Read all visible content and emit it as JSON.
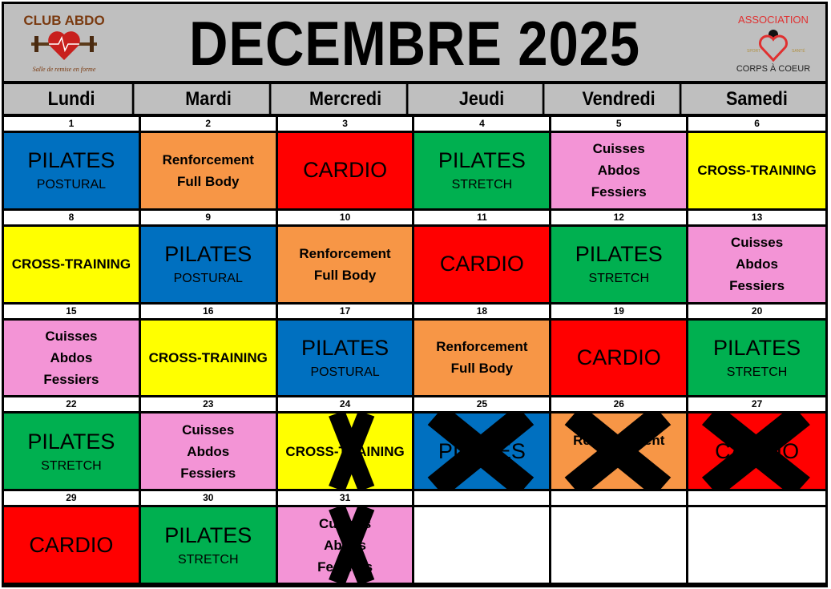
{
  "title": "DECEMBRE 2025",
  "logos": {
    "left": {
      "name": "CLUB ABDO",
      "tagline": "Salle de remise en forme"
    },
    "right": {
      "name": "ASSOCIATION",
      "sub": "CORPS À COEUR",
      "left_tag": "SPORT",
      "right_tag": "SANTÉ"
    }
  },
  "weekdays": [
    "Lundi",
    "Mardi",
    "Mercredi",
    "Jeudi",
    "Vendredi",
    "Samedi"
  ],
  "colors": {
    "pilates_postural": "#0070c0",
    "pilates_stretch": "#00b050",
    "renforcement": "#f79646",
    "cardio": "#ff0000",
    "cuisses": "#f394d6",
    "cross": "#ffff00",
    "empty": "#ffffff"
  },
  "cells": [
    {
      "day": "1",
      "lines": [
        "PILATES",
        "POSTURAL"
      ],
      "kind": "pilates",
      "color": "#0070c0"
    },
    {
      "day": "2",
      "lines": [
        "Renforcement",
        "Full Body"
      ],
      "kind": "bold",
      "color": "#f79646"
    },
    {
      "day": "3",
      "lines": [
        "CARDIO"
      ],
      "kind": "big",
      "color": "#ff0000"
    },
    {
      "day": "4",
      "lines": [
        "PILATES",
        "STRETCH"
      ],
      "kind": "pilates",
      "color": "#00b050"
    },
    {
      "day": "5",
      "lines": [
        "Cuisses",
        "Abdos",
        "Fessiers"
      ],
      "kind": "bold",
      "color": "#f394d6"
    },
    {
      "day": "6",
      "lines": [
        "CROSS-TRAINING"
      ],
      "kind": "bold",
      "color": "#ffff00"
    },
    {
      "day": "8",
      "lines": [
        "CROSS-TRAINING"
      ],
      "kind": "bold",
      "color": "#ffff00"
    },
    {
      "day": "9",
      "lines": [
        "PILATES",
        "POSTURAL"
      ],
      "kind": "pilates",
      "color": "#0070c0"
    },
    {
      "day": "10",
      "lines": [
        "Renforcement",
        "Full Body"
      ],
      "kind": "bold",
      "color": "#f79646"
    },
    {
      "day": "11",
      "lines": [
        "CARDIO"
      ],
      "kind": "big",
      "color": "#ff0000"
    },
    {
      "day": "12",
      "lines": [
        "PILATES",
        "STRETCH"
      ],
      "kind": "pilates",
      "color": "#00b050"
    },
    {
      "day": "13",
      "lines": [
        "Cuisses",
        "Abdos",
        "Fessiers"
      ],
      "kind": "bold",
      "color": "#f394d6"
    },
    {
      "day": "15",
      "lines": [
        "Cuisses",
        "Abdos",
        "Fessiers"
      ],
      "kind": "bold",
      "color": "#f394d6"
    },
    {
      "day": "16",
      "lines": [
        "CROSS-TRAINING"
      ],
      "kind": "bold",
      "color": "#ffff00"
    },
    {
      "day": "17",
      "lines": [
        "PILATES",
        "POSTURAL"
      ],
      "kind": "pilates",
      "color": "#0070c0"
    },
    {
      "day": "18",
      "lines": [
        "Renforcement",
        "Full Body"
      ],
      "kind": "bold",
      "color": "#f79646"
    },
    {
      "day": "19",
      "lines": [
        "CARDIO"
      ],
      "kind": "big",
      "color": "#ff0000"
    },
    {
      "day": "20",
      "lines": [
        "PILATES",
        "STRETCH"
      ],
      "kind": "pilates",
      "color": "#00b050"
    },
    {
      "day": "22",
      "lines": [
        "PILATES",
        "STRETCH"
      ],
      "kind": "pilates",
      "color": "#00b050"
    },
    {
      "day": "23",
      "lines": [
        "Cuisses",
        "Abdos",
        "Fessiers"
      ],
      "kind": "bold",
      "color": "#f394d6"
    },
    {
      "day": "24",
      "lines": [
        "CROSS-TRAINING"
      ],
      "kind": "bold",
      "color": "#ffff00",
      "cancelled": true
    },
    {
      "day": "25",
      "lines": [
        "PILATES"
      ],
      "kind": "big",
      "color": "#0070c0",
      "cancelled": true
    },
    {
      "day": "26",
      "lines": [
        "Renforcement"
      ],
      "kind": "bold",
      "color": "#f79646",
      "cancelled": true,
      "top": true
    },
    {
      "day": "27",
      "lines": [
        "CARDIO"
      ],
      "kind": "big",
      "color": "#ff0000",
      "cancelled": true
    },
    {
      "day": "29",
      "lines": [
        "CARDIO"
      ],
      "kind": "big",
      "color": "#ff0000"
    },
    {
      "day": "30",
      "lines": [
        "PILATES",
        "STRETCH"
      ],
      "kind": "pilates",
      "color": "#00b050"
    },
    {
      "day": "31",
      "lines": [
        "Cuisses",
        "Abdos",
        "Fessiers"
      ],
      "kind": "bold",
      "color": "#f394d6",
      "cancelled": true
    },
    {
      "day": "",
      "lines": [],
      "kind": "empty",
      "color": "#ffffff"
    },
    {
      "day": "",
      "lines": [],
      "kind": "empty",
      "color": "#ffffff"
    },
    {
      "day": "",
      "lines": [],
      "kind": "empty",
      "color": "#ffffff"
    }
  ]
}
